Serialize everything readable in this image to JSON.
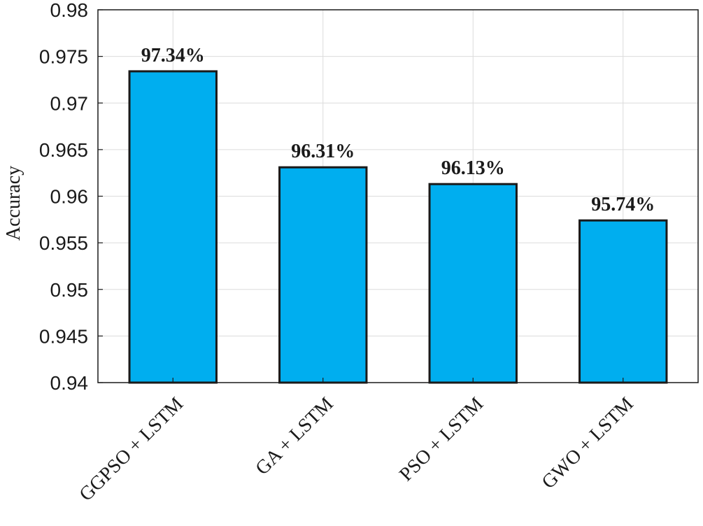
{
  "chart_data": {
    "type": "bar",
    "title": "",
    "xlabel": "",
    "ylabel": "Accuracy",
    "categories": [
      "GGPSO + LSTM",
      "GA + LSTM",
      "PSO + LSTM",
      "GWO + LSTM"
    ],
    "values": [
      0.9734,
      0.9631,
      0.9613,
      0.9574
    ],
    "data_labels": [
      "97.34%",
      "96.31%",
      "96.13%",
      "95.74%"
    ],
    "ylim": [
      0.94,
      0.98
    ],
    "yticks": [
      0.94,
      0.945,
      0.95,
      0.955,
      0.96,
      0.965,
      0.97,
      0.975,
      0.98
    ],
    "ytick_labels": [
      "0.94",
      "0.945",
      "0.95",
      "0.955",
      "0.96",
      "0.965",
      "0.97",
      "0.975",
      "0.98"
    ],
    "grid": true,
    "bar_color": "#00aeef",
    "bar_edge_color": "#1a1a1a"
  }
}
